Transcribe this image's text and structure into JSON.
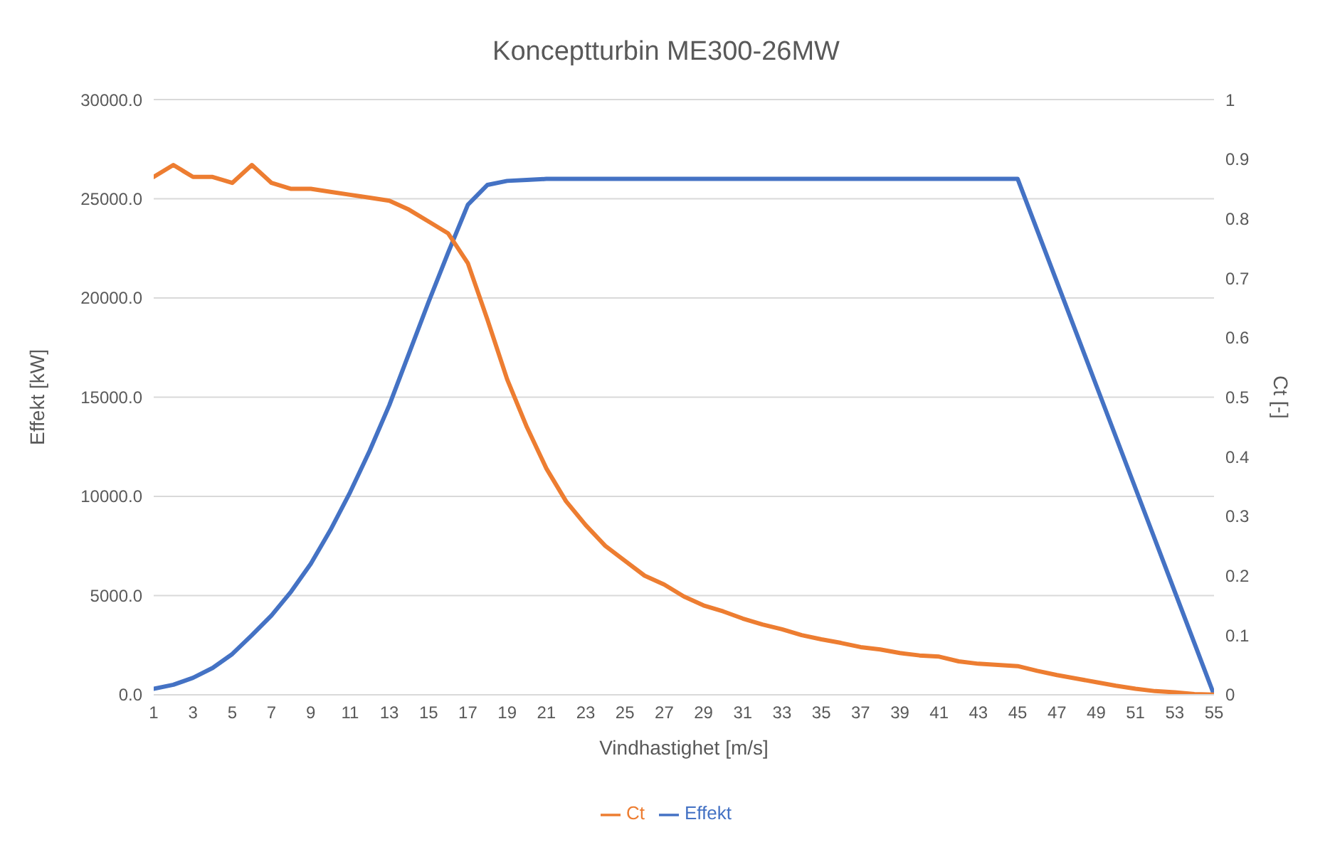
{
  "chart_data": {
    "type": "line",
    "title": "Konceptturbin ME300-26MW",
    "xlabel": "Vindhastighet [m/s]",
    "ylabel": "Effekt [kW]",
    "y2label": "Ct [-]",
    "x": [
      1,
      2,
      3,
      4,
      5,
      6,
      7,
      8,
      9,
      10,
      11,
      12,
      13,
      14,
      15,
      16,
      17,
      18,
      19,
      20,
      21,
      22,
      23,
      24,
      25,
      26,
      27,
      28,
      29,
      30,
      31,
      32,
      33,
      34,
      35,
      36,
      37,
      38,
      39,
      40,
      41,
      42,
      43,
      44,
      45,
      46,
      47,
      48,
      49,
      50,
      51,
      52,
      53,
      54,
      55
    ],
    "series": [
      {
        "name": "Effekt",
        "color": "#4472c4",
        "values": [
          300,
          500,
          850,
          1350,
          2050,
          3000,
          4000,
          5200,
          6600,
          8300,
          10200,
          12300,
          14600,
          17200,
          19800,
          22300,
          24700,
          25700,
          25900,
          25950,
          26000,
          26000,
          26000,
          26000,
          26000,
          26000,
          26000,
          26000,
          26000,
          26000,
          26000,
          26000,
          26000,
          26000,
          26000,
          26000,
          26000,
          26000,
          26000,
          26000,
          26000,
          26000,
          26000,
          26000,
          26000,
          23400,
          20800,
          18200,
          15600,
          13000,
          10400,
          7800,
          5200,
          2600,
          0
        ]
      },
      {
        "name": "Ct",
        "color": "#ed7d31",
        "axis": "y2",
        "values": [
          0.87,
          0.89,
          0.87,
          0.87,
          0.86,
          0.89,
          0.86,
          0.85,
          0.85,
          0.845,
          0.84,
          0.835,
          0.83,
          0.815,
          0.795,
          0.775,
          0.725,
          0.63,
          0.53,
          0.45,
          0.38,
          0.325,
          0.285,
          0.25,
          0.225,
          0.2,
          0.185,
          0.165,
          0.15,
          0.14,
          0.128,
          0.118,
          0.11,
          0.1,
          0.093,
          0.087,
          0.08,
          0.076,
          0.07,
          0.066,
          0.064,
          0.056,
          0.052,
          0.05,
          0.048,
          0.04,
          0.033,
          0.027,
          0.021,
          0.015,
          0.01,
          0.006,
          0.004,
          0.001,
          0
        ]
      }
    ],
    "xlim": [
      1,
      55
    ],
    "xticks": [
      1,
      3,
      5,
      7,
      9,
      11,
      13,
      15,
      17,
      19,
      21,
      23,
      25,
      27,
      29,
      31,
      33,
      35,
      37,
      39,
      41,
      43,
      45,
      47,
      49,
      51,
      53,
      55
    ],
    "ylim": [
      0,
      30000
    ],
    "yticks": [
      {
        "value": 0,
        "label": "0.0"
      },
      {
        "value": 5000,
        "label": "5000.0"
      },
      {
        "value": 10000,
        "label": "10000.0"
      },
      {
        "value": 15000,
        "label": "15000.0"
      },
      {
        "value": 20000,
        "label": "20000.0"
      },
      {
        "value": 25000,
        "label": "25000.0"
      },
      {
        "value": 30000,
        "label": "30000.0"
      }
    ],
    "y2lim": [
      0,
      1
    ],
    "y2ticks": [
      0,
      0.1,
      0.2,
      0.3,
      0.4,
      0.5,
      0.6,
      0.7,
      0.8,
      0.9,
      1
    ],
    "grid": "y",
    "legend": "bottom",
    "marker": "none",
    "line_style": "solid"
  }
}
